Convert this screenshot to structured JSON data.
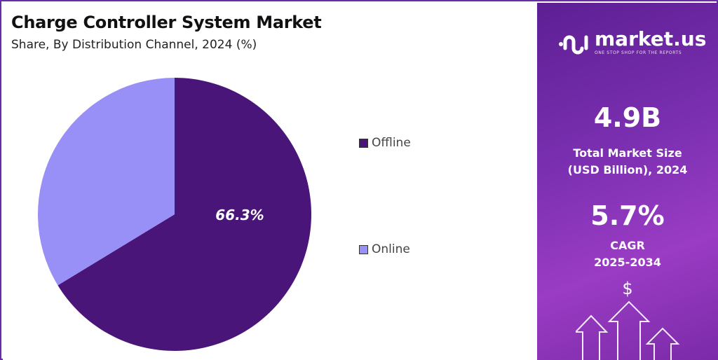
{
  "chart_data": {
    "type": "pie",
    "title": "Charge Controller System Market",
    "subtitle": "Share, By Distribution Channel, 2024 (%)",
    "categories": [
      "Offline",
      "Online"
    ],
    "values": [
      66.3,
      33.7
    ],
    "data_labels": [
      "66.3%",
      ""
    ],
    "colors": [
      "#4a1578",
      "#9890f6"
    ],
    "start_angle": "top, clockwise",
    "legend_position": "right"
  },
  "sidebar": {
    "brand": "market.us",
    "tagline": "ONE STOP SHOP FOR THE REPORTS",
    "market_size_value": "4.9B",
    "market_size_label_1": "Total Market Size",
    "market_size_label_2": "(USD Billion), 2024",
    "cagr_value": "5.7%",
    "cagr_label_1": "CAGR",
    "cagr_label_2": "2025-2034",
    "dollar_symbol": "$"
  }
}
